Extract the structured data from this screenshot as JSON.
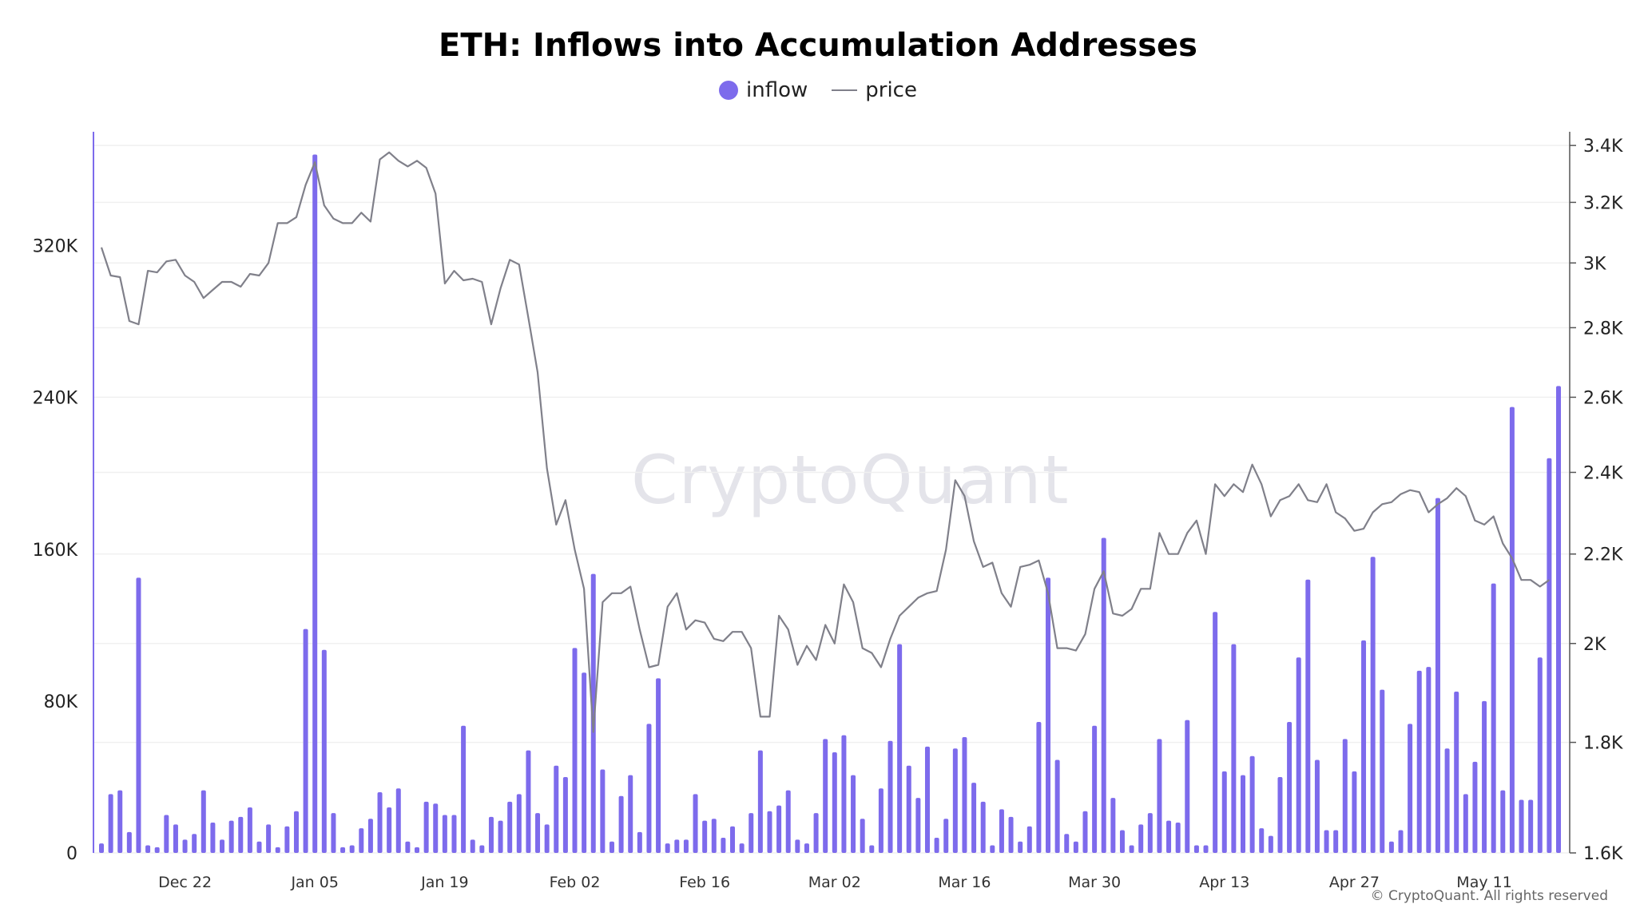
{
  "title": "ETH: Inflows into Accumulation Addresses",
  "legend": {
    "inflow": "inflow",
    "price": "price"
  },
  "watermark": "CryptoQuant",
  "copyright": "© CryptoQuant. All rights reserved",
  "colors": {
    "inflow": "#7d6bec",
    "price": "#80808a",
    "left_axis": "#7d6bec",
    "right_axis": "#555555",
    "grid": "#f0f0f0"
  },
  "chart_data": {
    "type": "bar",
    "title": "ETH: Inflows into Accumulation Addresses",
    "x_tick_labels": [
      "Dec 22",
      "Jan 05",
      "Jan 19",
      "Feb 02",
      "Feb 16",
      "Mar 02",
      "Mar 16",
      "Mar 30",
      "Apr 13",
      "Apr 27",
      "May 11"
    ],
    "y_left": {
      "ylim": [
        0,
        380000
      ],
      "tick_values": [
        0,
        80000,
        160000,
        240000,
        320000
      ],
      "tick_labels": [
        "0",
        "80K",
        "160K",
        "240K",
        "320K"
      ]
    },
    "y_right": {
      "ylim": [
        1600,
        3450
      ],
      "scale": "log",
      "tick_values": [
        1600,
        1800,
        2000,
        2200,
        2400,
        2600,
        2800,
        3000,
        3200,
        3400
      ],
      "tick_labels": [
        "1.6K",
        "1.8K",
        "2K",
        "2.2K",
        "2.4K",
        "2.6K",
        "2.8K",
        "3K",
        "3.2K",
        "3.4K"
      ]
    },
    "grid": true,
    "legend_position": "top-center",
    "series": [
      {
        "name": "inflow",
        "type": "bar",
        "axis": "left",
        "values": [
          5000,
          31000,
          33000,
          11000,
          145000,
          4000,
          3000,
          20000,
          15000,
          7000,
          10000,
          33000,
          16000,
          7000,
          17000,
          19000,
          24000,
          6000,
          15000,
          3000,
          14000,
          22000,
          118000,
          368000,
          107000,
          21000,
          3000,
          4000,
          13000,
          18000,
          32000,
          24000,
          34000,
          6000,
          3000,
          27000,
          26000,
          20000,
          20000,
          67000,
          7000,
          4000,
          19000,
          17000,
          27000,
          31000,
          54000,
          21000,
          15000,
          46000,
          40000,
          108000,
          95000,
          147000,
          44000,
          6000,
          30000,
          41000,
          11000,
          68000,
          92000,
          5000,
          7000,
          7000,
          31000,
          17000,
          18000,
          8000,
          14000,
          5000,
          21000,
          54000,
          22000,
          25000,
          33000,
          7000,
          5000,
          21000,
          60000,
          53000,
          62000,
          41000,
          18000,
          4000,
          34000,
          59000,
          110000,
          46000,
          29000,
          56000,
          8000,
          18000,
          55000,
          61000,
          37000,
          27000,
          4000,
          23000,
          19000,
          6000,
          14000,
          69000,
          145000,
          49000,
          10000,
          6000,
          22000,
          67000,
          166000,
          29000,
          12000,
          4000,
          15000,
          21000,
          60000,
          17000,
          16000,
          70000,
          4000,
          4000,
          127000,
          43000,
          110000,
          41000,
          51000,
          13000,
          9000,
          40000,
          69000,
          103000,
          144000,
          49000,
          12000,
          12000,
          60000,
          43000,
          112000,
          156000,
          86000,
          6000,
          12000,
          68000,
          96000,
          98000,
          187000,
          55000,
          85000,
          31000,
          48000,
          80000,
          142000,
          33000,
          235000,
          28000,
          28000,
          103000,
          208000,
          246000
        ]
      },
      {
        "name": "price",
        "type": "line",
        "axis": "right",
        "values": [
          3050,
          2960,
          2955,
          2820,
          2810,
          2975,
          2970,
          3005,
          3010,
          2960,
          2940,
          2890,
          2915,
          2940,
          2940,
          2925,
          2965,
          2960,
          3000,
          3130,
          3130,
          3150,
          3260,
          3340,
          3190,
          3145,
          3130,
          3130,
          3165,
          3135,
          3350,
          3375,
          3345,
          3325,
          3345,
          3320,
          3230,
          2935,
          2975,
          2945,
          2950,
          2940,
          2810,
          2920,
          3010,
          2995,
          2830,
          2670,
          2410,
          2270,
          2330,
          2210,
          2120,
          1820,
          2090,
          2110,
          2110,
          2125,
          2030,
          1950,
          1955,
          2080,
          2110,
          2030,
          2050,
          2045,
          2010,
          2005,
          2025,
          2025,
          1990,
          1850,
          1850,
          2060,
          2030,
          1955,
          1995,
          1965,
          2040,
          2000,
          2130,
          2090,
          1990,
          1980,
          1950,
          2010,
          2060,
          2080,
          2100,
          2110,
          2115,
          2210,
          2380,
          2340,
          2230,
          2170,
          2180,
          2110,
          2080,
          2170,
          2175,
          2185,
          2110,
          1990,
          1990,
          1985,
          2020,
          2120,
          2160,
          2065,
          2060,
          2075,
          2120,
          2120,
          2250,
          2200,
          2200,
          2250,
          2280,
          2200,
          2370,
          2340,
          2370,
          2350,
          2420,
          2370,
          2290,
          2330,
          2340,
          2370,
          2330,
          2325,
          2370,
          2300,
          2285,
          2255,
          2260,
          2300,
          2320,
          2325,
          2345,
          2355,
          2350,
          2300,
          2320,
          2335,
          2360,
          2340,
          2280,
          2270,
          2290,
          2225,
          2190,
          2140,
          2140,
          2125,
          2140
        ]
      }
    ]
  }
}
